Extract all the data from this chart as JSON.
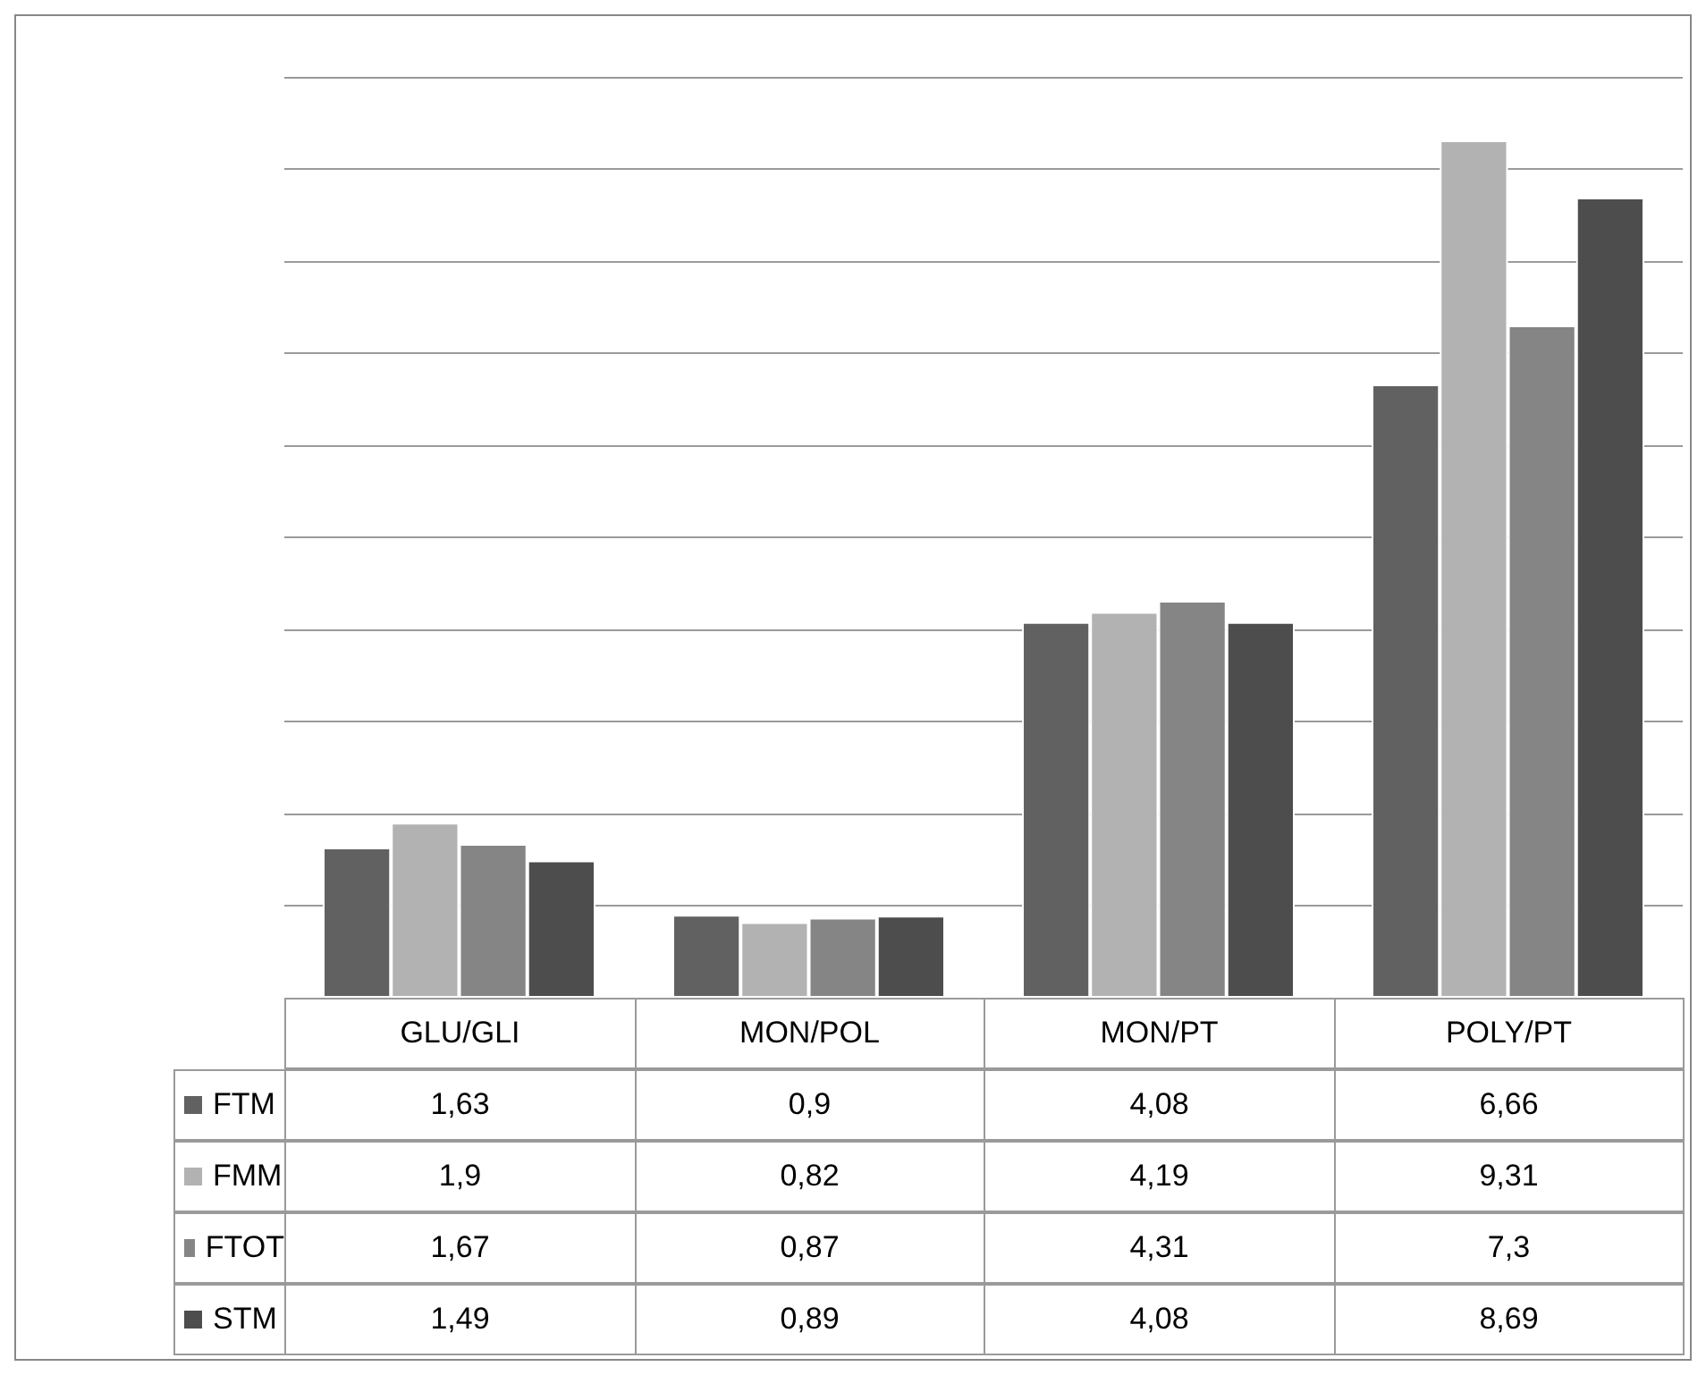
{
  "chart_data": {
    "type": "bar",
    "categories": [
      "GLU/GLI",
      "MON/POL",
      "MON/PT",
      "POLY/PT"
    ],
    "series": [
      {
        "name": "FTM",
        "color": "#616161",
        "values": [
          1.63,
          0.9,
          4.08,
          6.66
        ],
        "value_labels": [
          "1,63",
          "0,9",
          "4,08",
          "6,66"
        ]
      },
      {
        "name": "FMM",
        "color": "#b2b2b2",
        "values": [
          1.9,
          0.82,
          4.19,
          9.31
        ],
        "value_labels": [
          "1,9",
          "0,82",
          "4,19",
          "9,31"
        ]
      },
      {
        "name": "FTOT",
        "color": "#858585",
        "values": [
          1.67,
          0.87,
          4.31,
          7.3
        ],
        "value_labels": [
          "1,67",
          "0,87",
          "4,31",
          "7,3"
        ]
      },
      {
        "name": "STM",
        "color": "#4d4d4d",
        "values": [
          1.49,
          0.89,
          4.08,
          8.69
        ],
        "value_labels": [
          "1,49",
          "0,89",
          "4,08",
          "8,69"
        ]
      }
    ],
    "ylim": [
      0,
      10
    ],
    "legend": "bottom left",
    "grid": "y"
  }
}
